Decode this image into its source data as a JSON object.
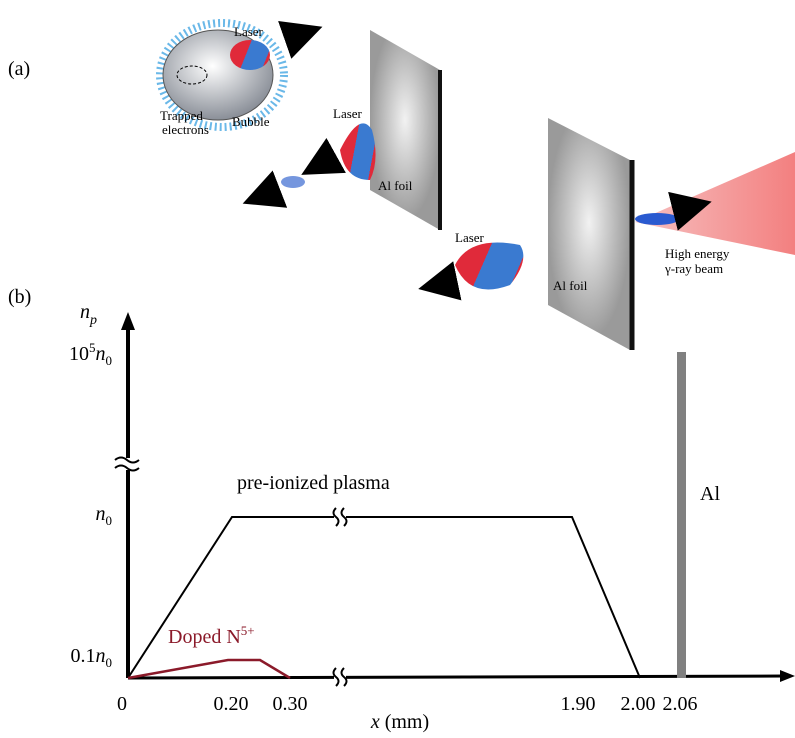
{
  "panel_a": {
    "label": "(a)",
    "bubble_laser": "Laser",
    "trapped_1": "Trapped",
    "trapped_2": "electrons",
    "bubble": "Bubble",
    "laser_2": "Laser",
    "foil_1": "Al foil",
    "laser_3": "Laser",
    "foil_2": "Al foil",
    "beam_1": "High energy",
    "beam_2": "γ-ray beam"
  },
  "panel_b": {
    "label": "(b)",
    "y_label": {
      "var": "n",
      "sub": "p"
    },
    "y_ticks": [
      {
        "coef": "10",
        "sup": "5",
        "var": "n",
        "sub": "0"
      },
      {
        "coef": "",
        "sup": "",
        "var": "n",
        "sub": "0"
      },
      {
        "coef": "0.1",
        "sup": "",
        "var": "n",
        "sub": "0"
      }
    ],
    "x_ticks": [
      "0",
      "0.20",
      "0.30",
      "1.90",
      "2.00",
      "2.06"
    ],
    "x_label": {
      "var": "x",
      "unit": " (mm)"
    },
    "plasma": "pre-ionized plasma",
    "al": "Al",
    "doped": {
      "text": "Doped N",
      "sup": "5+"
    }
  }
}
